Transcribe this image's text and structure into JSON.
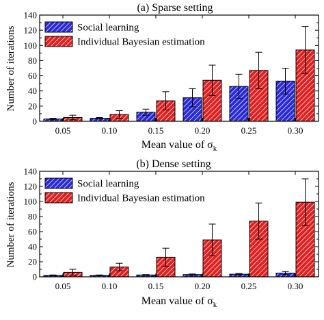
{
  "colors": {
    "series_a_fill": "#2a2ad8",
    "series_b_fill": "#e02020",
    "hatch": "#ffffff",
    "axis": "#000000",
    "error_bar": "#000000"
  },
  "legend_placement": "top-left",
  "chart_data": [
    {
      "type": "bar",
      "title": "(a) Sparse setting",
      "xlabel": "Mean value of σ",
      "xlabel_subscript": "k",
      "ylabel": "Number of iterations",
      "categories": [
        "0.05",
        "0.10",
        "0.15",
        "0.20",
        "0.25",
        "0.30"
      ],
      "ylim": [
        0,
        140
      ],
      "yticks": [
        "0",
        "20",
        "40",
        "60",
        "80",
        "100",
        "120",
        "140"
      ],
      "series": [
        {
          "name": "Social learning",
          "values": [
            3,
            4,
            12,
            31,
            46,
            53
          ],
          "errors": [
            1,
            1,
            4,
            12,
            16,
            17
          ]
        },
        {
          "name": "Individual Bayesian estimation",
          "values": [
            5,
            9,
            27,
            54,
            67,
            94
          ],
          "errors": [
            3,
            5,
            12,
            20,
            24,
            31
          ]
        }
      ]
    },
    {
      "type": "bar",
      "title": "(b) Dense setting",
      "xlabel": "Mean value of σ",
      "xlabel_subscript": "k",
      "ylabel": "Number of iterations",
      "categories": [
        "0.05",
        "0.10",
        "0.15",
        "0.20",
        "0.25",
        "0.30"
      ],
      "ylim": [
        0,
        140
      ],
      "yticks": [
        "0",
        "20",
        "40",
        "60",
        "80",
        "100",
        "120",
        "140"
      ],
      "series": [
        {
          "name": "Social learning",
          "values": [
            2,
            2,
            2.5,
            3,
            3.5,
            5
          ],
          "errors": [
            0.5,
            0.5,
            0.5,
            0.8,
            1,
            2
          ]
        },
        {
          "name": "Individual Bayesian estimation",
          "values": [
            6,
            13,
            26,
            49,
            74,
            99
          ],
          "errors": [
            4,
            5,
            12,
            21,
            24,
            31
          ]
        }
      ]
    }
  ]
}
